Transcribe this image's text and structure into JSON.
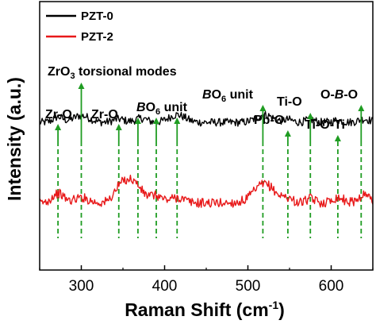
{
  "chart_data": {
    "type": "line",
    "title": "",
    "xlabel": "Raman Shift (cm",
    "xlabel_sup": "-1",
    "xlabel_close": ")",
    "ylabel": "Intensity (a.u.)",
    "xlim": [
      250,
      650
    ],
    "ylim": [
      0,
      1
    ],
    "x_ticks": [
      "300",
      "400",
      "500",
      "600"
    ],
    "x_tick_values": [
      300,
      400,
      500,
      600
    ],
    "grid": false,
    "legend_position": "top-left",
    "series": [
      {
        "name": "PZT-0",
        "color": "#000000",
        "baseline": 0.55,
        "noise": 0.03,
        "peaks": [
          [
            272,
            0.02,
            8
          ],
          [
            300,
            0.025,
            14
          ],
          [
            345,
            0.012,
            10
          ],
          [
            372,
            0.015,
            10
          ],
          [
            415,
            0.028,
            14
          ],
          [
            520,
            0.028,
            14
          ],
          [
            548,
            0.01,
            8
          ],
          [
            575,
            0.01,
            8
          ],
          [
            608,
            0.008,
            8
          ],
          [
            640,
            0.012,
            10
          ]
        ]
      },
      {
        "name": "PZT-2",
        "color": "#e8191a",
        "baseline": 0.25,
        "noise": 0.035,
        "peaks": [
          [
            272,
            0.035,
            10
          ],
          [
            300,
            0.02,
            12
          ],
          [
            345,
            0.03,
            10
          ],
          [
            360,
            0.085,
            16
          ],
          [
            390,
            0.025,
            10
          ],
          [
            415,
            0.02,
            12
          ],
          [
            520,
            0.07,
            18
          ],
          [
            548,
            0.015,
            8
          ],
          [
            575,
            0.015,
            8
          ],
          [
            608,
            0.02,
            10
          ],
          [
            640,
            0.03,
            10
          ]
        ]
      }
    ],
    "reference_lines_x": [
      272,
      300,
      345,
      368,
      390,
      415,
      518,
      548,
      575,
      608,
      636
    ],
    "annotations": [
      {
        "text": "Zr-O",
        "targets": [
          272
        ]
      },
      {
        "text": "ZrO",
        "sub": "3",
        "after": " torsional modes",
        "targets": [
          300
        ]
      },
      {
        "text": "Zr-O",
        "targets": [
          345
        ]
      },
      {
        "text": "",
        "italic": "B",
        "mid": "O",
        "sub": "6",
        "after": " unit",
        "targets": [
          368,
          390,
          415
        ]
      },
      {
        "text": "",
        "italic": "B",
        "mid": "O",
        "sub": "6",
        "after": " unit",
        "targets": [
          518
        ]
      },
      {
        "text": "Pb-O",
        "targets": [
          548
        ]
      },
      {
        "text": "Ti-O",
        "targets": [
          575
        ]
      },
      {
        "text": "Ti-O-Ti",
        "targets": [
          608
        ]
      },
      {
        "text": "O-",
        "italic": "B",
        "after": "-O",
        "targets": [
          636
        ]
      }
    ]
  }
}
